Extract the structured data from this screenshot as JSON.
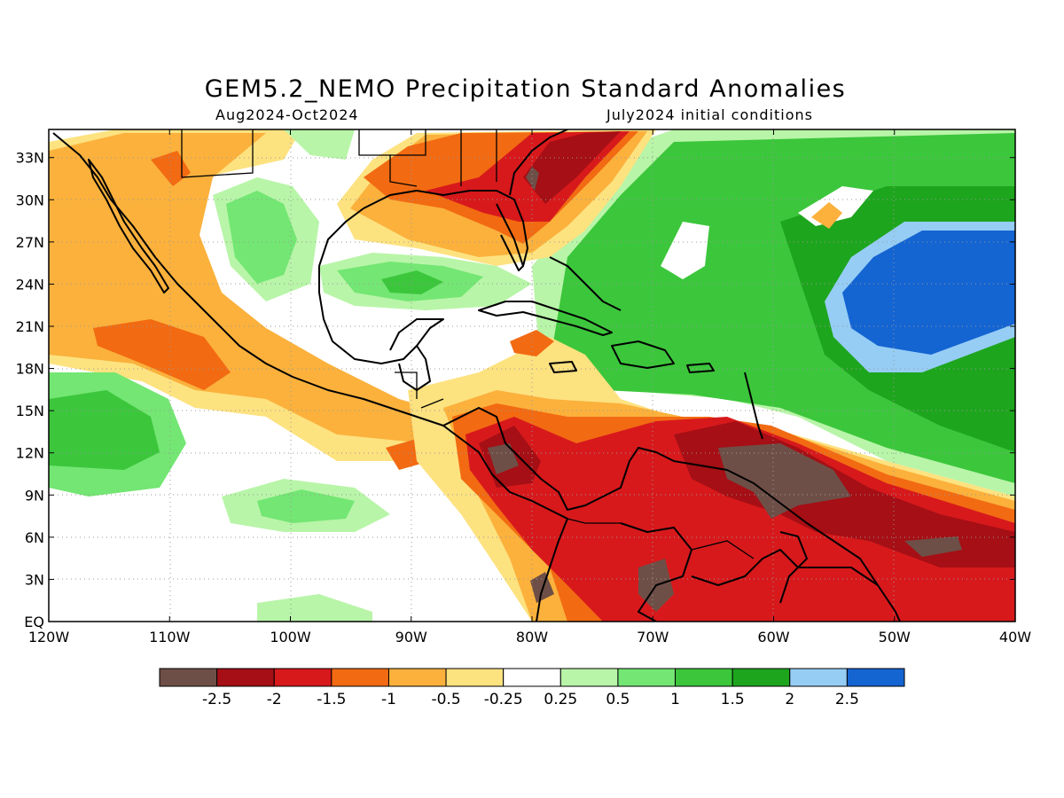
{
  "title": "GEM5.2_NEMO Precipitation Standard Anomalies",
  "subtitle_period": "Aug2024-Oct2024",
  "subtitle_init": "July2024 initial conditions",
  "map": {
    "lat_ticks": [
      "EQ",
      "3N",
      "6N",
      "9N",
      "12N",
      "15N",
      "18N",
      "21N",
      "24N",
      "27N",
      "30N",
      "33N"
    ],
    "lon_ticks": [
      "120W",
      "110W",
      "100W",
      "90W",
      "80W",
      "70W",
      "60W",
      "50W",
      "40W"
    ],
    "lat_range": [
      0,
      35
    ],
    "lon_range": [
      -120,
      -40
    ],
    "gridlines": "dotted"
  },
  "legend": {
    "labels": [
      "-2.5",
      "-2",
      "-1.5",
      "-1",
      "-0.5",
      "-0.25",
      "0.25",
      "0.5",
      "1",
      "1.5",
      "2",
      "2.5"
    ],
    "colors": [
      "#6e4f47",
      "#a50f15",
      "#d7191c",
      "#f26a12",
      "#fbb13c",
      "#fde280",
      "#ffffff",
      "#b8f5a8",
      "#73e673",
      "#3cc63c",
      "#1ea51e",
      "#96cdf5",
      "#1464d2"
    ]
  },
  "colors": {
    "ocean_neutral": "#ffffff",
    "coastline": "#000000"
  }
}
